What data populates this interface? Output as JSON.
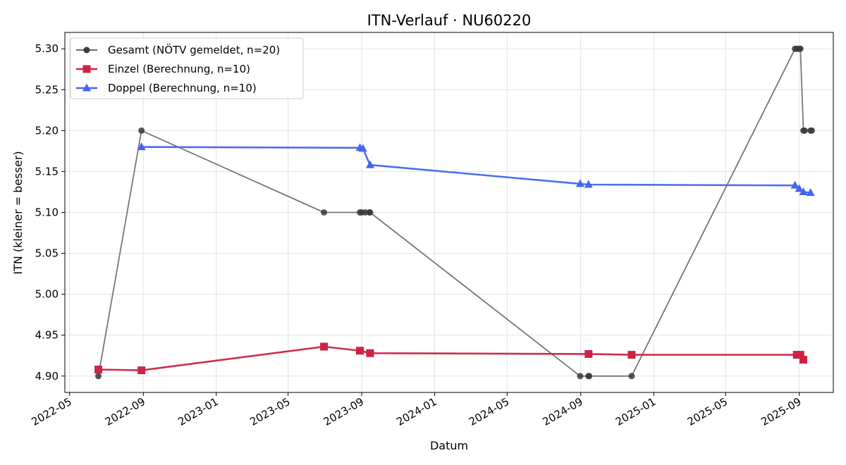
{
  "chart_data": {
    "type": "line",
    "title": "ITN-Verlauf · NU60220",
    "xlabel": "Datum",
    "ylabel": "ITN  (kleiner = besser)",
    "x_type": "date",
    "xlim": [
      "2022-04-23",
      "2025-10-28"
    ],
    "ylim": [
      4.88,
      5.32
    ],
    "x_ticks": [
      "2022-05",
      "2022-09",
      "2023-01",
      "2023-05",
      "2023-09",
      "2024-01",
      "2024-05",
      "2024-09",
      "2025-01",
      "2025-05",
      "2025-09"
    ],
    "y_ticks": [
      "4.90",
      "4.95",
      "5.00",
      "5.05",
      "5.10",
      "5.15",
      "5.20",
      "5.25",
      "5.30"
    ],
    "grid": true,
    "legend_position": "top-left",
    "series": [
      {
        "name": "Gesamt (NÖTV gemeldet, n=20)",
        "color": "#555555",
        "marker": "circle",
        "points": [
          {
            "x": "2022-06-18",
            "y": 4.9
          },
          {
            "x": "2022-08-29",
            "y": 5.2
          },
          {
            "x": "2023-06-30",
            "y": 5.1
          },
          {
            "x": "2023-08-29",
            "y": 5.1
          },
          {
            "x": "2023-09-01",
            "y": 5.1
          },
          {
            "x": "2023-09-07",
            "y": 5.1
          },
          {
            "x": "2023-09-14",
            "y": 5.1
          },
          {
            "x": "2023-09-15",
            "y": 5.1
          },
          {
            "x": "2024-08-31",
            "y": 4.9
          },
          {
            "x": "2024-09-14",
            "y": 4.9
          },
          {
            "x": "2024-09-15",
            "y": 4.9
          },
          {
            "x": "2024-11-25",
            "y": 4.9
          },
          {
            "x": "2025-08-25",
            "y": 5.3
          },
          {
            "x": "2025-08-28",
            "y": 5.3
          },
          {
            "x": "2025-09-01",
            "y": 5.3
          },
          {
            "x": "2025-09-03",
            "y": 5.3
          },
          {
            "x": "2025-09-08",
            "y": 5.2
          },
          {
            "x": "2025-09-10",
            "y": 5.2
          },
          {
            "x": "2025-09-20",
            "y": 5.2
          },
          {
            "x": "2025-09-22",
            "y": 5.2
          }
        ]
      },
      {
        "name": "Einzel (Berechnung, n=10)",
        "color": "#cc2244",
        "marker": "square",
        "points": [
          {
            "x": "2022-06-18",
            "y": 4.908
          },
          {
            "x": "2022-08-29",
            "y": 4.907
          },
          {
            "x": "2023-06-30",
            "y": 4.936
          },
          {
            "x": "2023-08-29",
            "y": 4.931
          },
          {
            "x": "2023-09-15",
            "y": 4.928
          },
          {
            "x": "2024-09-14",
            "y": 4.927
          },
          {
            "x": "2024-11-25",
            "y": 4.926
          },
          {
            "x": "2025-08-28",
            "y": 4.926
          },
          {
            "x": "2025-09-03",
            "y": 4.926
          },
          {
            "x": "2025-09-08",
            "y": 4.92
          }
        ]
      },
      {
        "name": "Doppel (Berechnung, n=10)",
        "color": "#4466ee",
        "marker": "triangle",
        "points": [
          {
            "x": "2022-08-29",
            "y": 5.18
          },
          {
            "x": "2023-08-29",
            "y": 5.179
          },
          {
            "x": "2023-09-03",
            "y": 5.178
          },
          {
            "x": "2023-09-15",
            "y": 5.158
          },
          {
            "x": "2024-08-31",
            "y": 5.135
          },
          {
            "x": "2024-09-14",
            "y": 5.134
          },
          {
            "x": "2025-08-25",
            "y": 5.133
          },
          {
            "x": "2025-09-01",
            "y": 5.129
          },
          {
            "x": "2025-09-08",
            "y": 5.125
          },
          {
            "x": "2025-09-20",
            "y": 5.124
          }
        ]
      }
    ]
  }
}
